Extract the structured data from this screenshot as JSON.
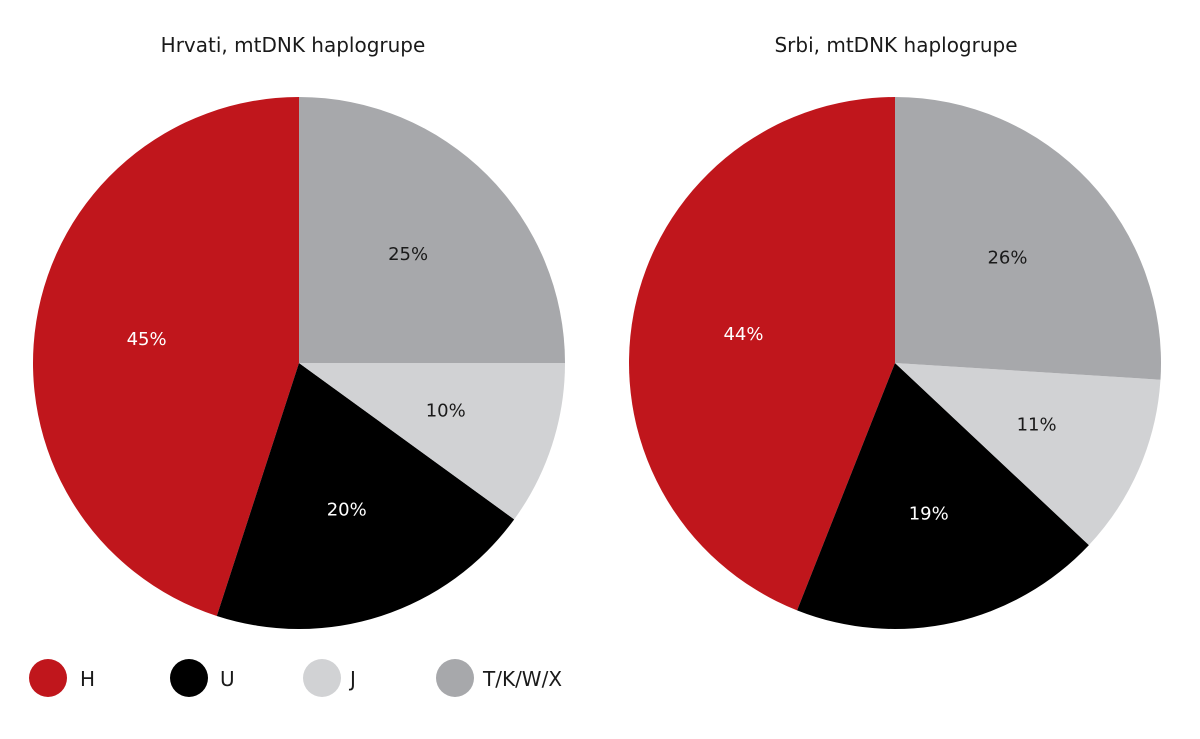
{
  "chart_data": [
    {
      "type": "pie",
      "title": "Hrvati, mtDNK haplogrupe",
      "categories": [
        "H",
        "U",
        "J",
        "T/K/W/X"
      ],
      "values": [
        45,
        20,
        10,
        25
      ],
      "labels": [
        "45%",
        "20%",
        "10%",
        "25%"
      ]
    },
    {
      "type": "pie",
      "title": "Srbi, mtDNK haplogrupe",
      "categories": [
        "H",
        "U",
        "J",
        "T/K/W/X"
      ],
      "values": [
        44,
        19,
        11,
        26
      ],
      "labels": [
        "44%",
        "19%",
        "11%",
        "26%"
      ]
    }
  ],
  "legend": {
    "placement": "bottom-left",
    "items": [
      {
        "label": "H",
        "color": "#c0161c"
      },
      {
        "label": "U",
        "color": "#000000"
      },
      {
        "label": "J",
        "color": "#d1d2d4"
      },
      {
        "label": "T/K/W/X",
        "color": "#a7a8ab"
      }
    ]
  },
  "label_colors": {
    "H": "#ffffff",
    "U": "#ffffff",
    "J": "#1a1a1a",
    "T/K/W/X": "#1a1a1a"
  }
}
